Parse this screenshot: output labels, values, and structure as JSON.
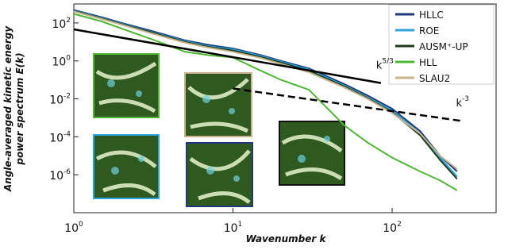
{
  "chart_data": {
    "type": "line",
    "xscale": "log",
    "yscale": "log",
    "xlabel": "Wavenumber k",
    "ylabel": [
      "Angle-averaged kinetic energy",
      "power spectrum E(k)"
    ],
    "xlim": [
      1,
      450
    ],
    "ylim": [
      1e-08,
      1000
    ],
    "xticks": [
      {
        "value": 1,
        "label": "10",
        "exp": "0"
      },
      {
        "value": 10,
        "label": "10",
        "exp": "1"
      },
      {
        "value": 100,
        "label": "10",
        "exp": "2"
      }
    ],
    "yticks": [
      {
        "value": 100,
        "label": "10",
        "exp": "2"
      },
      {
        "value": 1,
        "label": "10",
        "exp": "0"
      },
      {
        "value": 0.01,
        "label": "10",
        "exp": "-2"
      },
      {
        "value": 0.0001,
        "label": "10",
        "exp": "-4"
      },
      {
        "value": 1e-06,
        "label": "10",
        "exp": "-6"
      }
    ],
    "legend": "upper right",
    "series": [
      {
        "name": "HLLC",
        "color": "#1f3a7a",
        "x": [
          1,
          1.5,
          2,
          3,
          5,
          7,
          10,
          15,
          20,
          30,
          50,
          70,
          100,
          150,
          200,
          256
        ],
        "values": [
          480,
          200,
          100,
          40,
          12,
          7,
          4.5,
          2,
          1,
          0.4,
          0.06,
          0.015,
          0.003,
          0.0002,
          1e-05,
          1.5e-06
        ]
      },
      {
        "name": "ROE",
        "color": "#2aa6dc",
        "x": [
          1,
          1.5,
          2,
          3,
          5,
          7,
          10,
          15,
          20,
          30,
          50,
          70,
          100,
          150,
          200,
          256
        ],
        "values": [
          450,
          180,
          90,
          35,
          11,
          6,
          4,
          1.8,
          0.9,
          0.35,
          0.05,
          0.012,
          0.0025,
          0.00015,
          8e-06,
          8e-07
        ]
      },
      {
        "name": "AUSM⁺-UP",
        "color": "#1b3a1b",
        "x": [
          1,
          1.5,
          2,
          3,
          5,
          7,
          10,
          15,
          20,
          30,
          50,
          70,
          100,
          150,
          200,
          256
        ],
        "values": [
          420,
          170,
          85,
          33,
          10,
          5.5,
          3.5,
          1.6,
          0.8,
          0.3,
          0.045,
          0.011,
          0.002,
          0.00012,
          6e-06,
          6e-07
        ]
      },
      {
        "name": "HLL",
        "color": "#4cb830",
        "x": [
          1,
          1.5,
          2,
          3,
          5,
          7,
          10,
          15,
          20,
          30,
          50,
          70,
          100,
          150,
          200,
          256
        ],
        "values": [
          300,
          120,
          50,
          15,
          3,
          2,
          1.5,
          0.3,
          0.1,
          0.03,
          0.0004,
          5e-05,
          8e-06,
          1.5e-06,
          5e-07,
          1.5e-07
        ]
      },
      {
        "name": "SLAU2",
        "color": "#c8b48a",
        "x": [
          1,
          1.5,
          2,
          3,
          5,
          7,
          10,
          15,
          20,
          30,
          50,
          70,
          100,
          150,
          200,
          256
        ],
        "values": [
          400,
          160,
          80,
          30,
          9,
          5,
          3,
          1.4,
          0.7,
          0.25,
          0.04,
          0.01,
          0.0018,
          0.00015,
          1e-05,
          2e-06
        ]
      }
    ],
    "reference_lines": [
      {
        "style": "solid",
        "color": "#000000",
        "x": [
          1,
          85
        ],
        "values": [
          46,
          0.068
        ],
        "text": "k",
        "exp": "5/3"
      },
      {
        "style": "dashed",
        "color": "#000000",
        "x": [
          10,
          270
        ],
        "values": [
          0.035,
          0.0007
        ],
        "text": "k",
        "exp": "-3"
      }
    ]
  }
}
